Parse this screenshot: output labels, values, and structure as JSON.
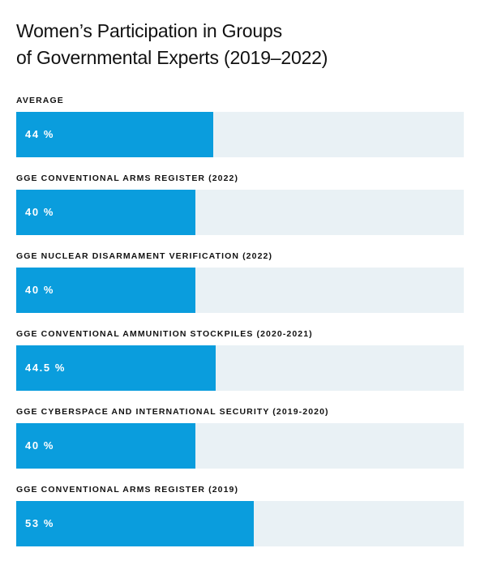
{
  "title_lines": [
    "Women’s Participation in Groups",
    "of Governmental Experts (2019–2022)"
  ],
  "colors": {
    "bar_fill": "#0a9ddd",
    "track": "#e9f1f5",
    "value_text": "#ffffff"
  },
  "chart_data": {
    "type": "bar",
    "orientation": "horizontal",
    "title": "Women’s Participation in Groups of Governmental Experts (2019–2022)",
    "xlim": [
      0,
      100
    ],
    "unit": "%",
    "grid": false,
    "categories": [
      "AVERAGE",
      "GGE CONVENTIONAL ARMS REGISTER (2022)",
      "GGE NUCLEAR DISARMAMENT VERIFICATION (2022)",
      "GGE CONVENTIONAL AMMUNITION STOCKPILES (2020-2021)",
      "GGE CYBERSPACE AND INTERNATIONAL SECURITY (2019-2020)",
      "GGE CONVENTIONAL ARMS REGISTER (2019)"
    ],
    "values": [
      44,
      40,
      40,
      44.5,
      40,
      53
    ],
    "value_labels": [
      "44 %",
      "40 %",
      "40 %",
      "44.5 %",
      "40 %",
      "53 %"
    ]
  }
}
